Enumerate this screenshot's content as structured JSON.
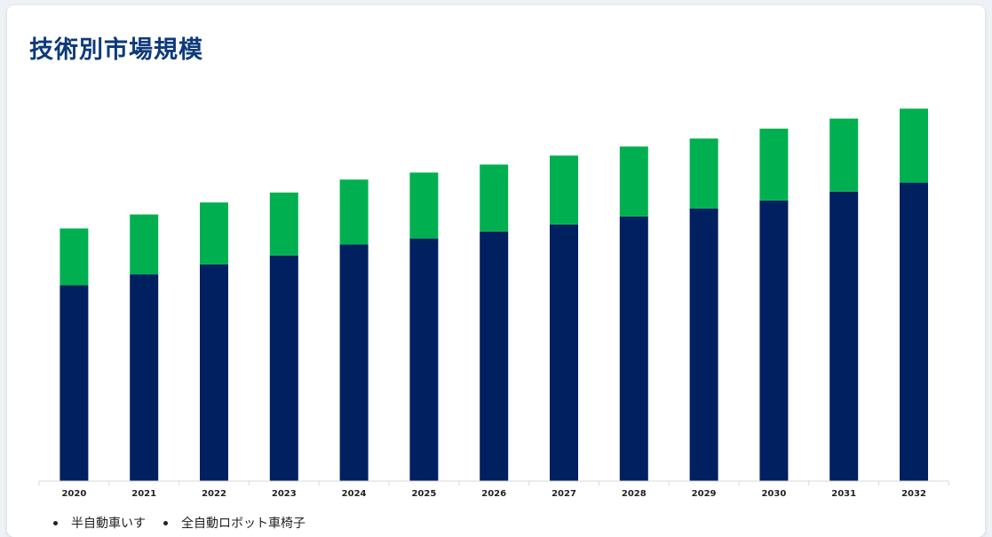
{
  "header": {
    "title": "技術別市場規模"
  },
  "legend": {
    "items": [
      {
        "label": "半自動車いす"
      },
      {
        "label": "全自動ロボット車椅子"
      }
    ]
  },
  "chart_data": {
    "type": "bar",
    "stacked": true,
    "title": "技術別市場規模",
    "xlabel": "",
    "ylabel": "",
    "grid": false,
    "legend_position": "bottom-left",
    "categories": [
      "2020",
      "2021",
      "2022",
      "2023",
      "2024",
      "2025",
      "2026",
      "2027",
      "2028",
      "2029",
      "2030",
      "2031",
      "2032"
    ],
    "series": [
      {
        "name": "半自動車いす",
        "color": "#002060",
        "values": [
          196,
          207,
          217,
          226,
          237,
          243,
          250,
          257,
          265,
          273,
          281,
          290,
          299
        ]
      },
      {
        "name": "全自動ロボット車椅子",
        "color": "#00b050",
        "values": [
          57,
          60,
          62,
          63,
          65,
          66,
          67,
          69,
          70,
          70,
          72,
          73,
          74
        ]
      }
    ],
    "ylim": [
      0,
      400
    ]
  }
}
